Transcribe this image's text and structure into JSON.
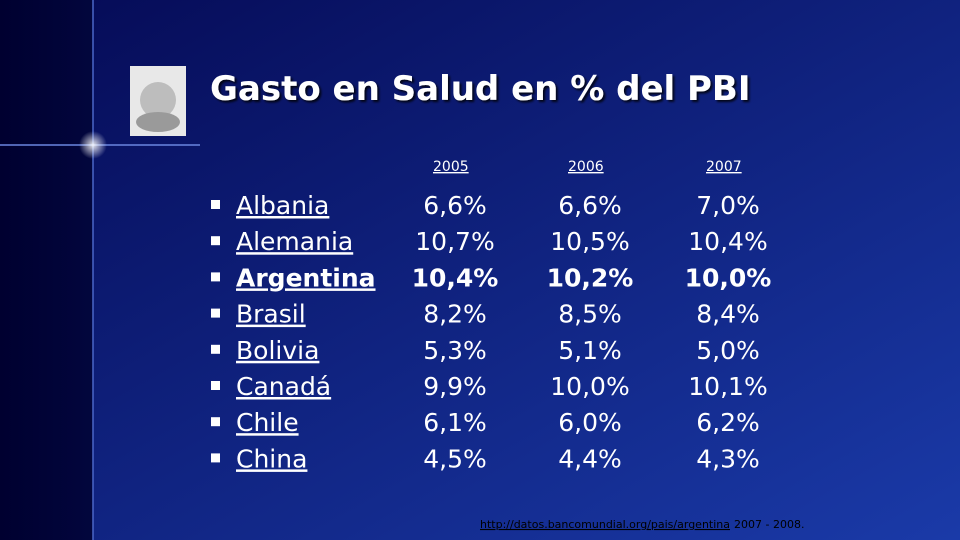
{
  "title": "Gasto en Salud en % del PBI",
  "table": {
    "headers": [
      "2005",
      "2006",
      "2007"
    ],
    "rows": [
      {
        "country": "Albania",
        "values": [
          "6,6%",
          "6,6%",
          "7,0%"
        ]
      },
      {
        "country": "Alemania",
        "values": [
          "10,7%",
          "10,5%",
          "10,4%"
        ]
      },
      {
        "country": "Argentina",
        "values": [
          "10,4%",
          "10,2%",
          "10,0%"
        ],
        "bold": true
      },
      {
        "country": "Brasil",
        "values": [
          "8,2%",
          "8,5%",
          "8,4%"
        ]
      },
      {
        "country": "Bolivia",
        "values": [
          "5,3%",
          "5,1%",
          "5,0%"
        ]
      },
      {
        "country": "Canadá",
        "values": [
          "9,9%",
          "10,0%",
          "10,1%"
        ]
      },
      {
        "country": "Chile",
        "values": [
          "6,1%",
          "6,0%",
          "6,2%"
        ]
      },
      {
        "country": "China",
        "values": [
          "4,5%",
          "4,4%",
          "4,3%"
        ]
      }
    ]
  },
  "source": {
    "link": "http://datos.bancomundial.org/pais/argentina",
    "period": "2007 - 2008."
  }
}
